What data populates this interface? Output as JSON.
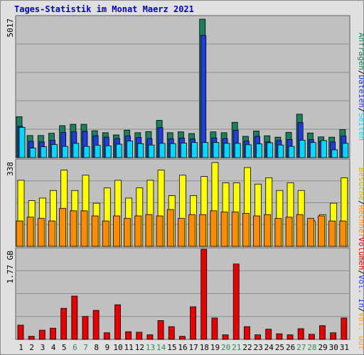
{
  "title": "Tages-Statistik im Monat Maerz 2021",
  "colors": {
    "anfragen": "#1a8060",
    "dateien": "#1e3ce0",
    "seiten": "#00d8ff",
    "besuche": "#ffff00",
    "rechner": "#ff8c00",
    "volumen": "#e80000",
    "panel_bg": "#c0c0c0",
    "grid": "#8c8c8c",
    "weekend_text": "#2e8b57",
    "weekday_text": "#000000"
  },
  "chart_data": [
    {
      "type": "bar",
      "name": "hits_files_pages",
      "ymax_label": "5017",
      "ylim": [
        0,
        5017
      ],
      "x": [
        "1",
        "2",
        "3",
        "4",
        "5",
        "6",
        "7",
        "8",
        "9",
        "10",
        "11",
        "12",
        "13",
        "14",
        "15",
        "16",
        "17",
        "18",
        "19",
        "20",
        "21",
        "22",
        "23",
        "24",
        "25",
        "26",
        "27",
        "28",
        "29",
        "30",
        "31"
      ],
      "weekend_days": [
        6,
        7,
        13,
        14,
        20,
        21,
        27,
        28
      ],
      "right_label": [
        {
          "text": "Anfragen",
          "color": "#1a8060"
        },
        {
          "text": "/",
          "color": "#000000"
        },
        {
          "text": "Dateien",
          "color": "#1e3ce0"
        },
        {
          "text": "/",
          "color": "#000000"
        },
        {
          "text": "Seiten",
          "color": "#00d8ff"
        }
      ],
      "series": [
        {
          "name": "Anfragen",
          "color": "#1a8060",
          "values": [
            1460,
            790,
            790,
            870,
            1140,
            1190,
            1190,
            960,
            890,
            810,
            980,
            890,
            930,
            1330,
            890,
            920,
            860,
            4940,
            920,
            890,
            1260,
            760,
            950,
            780,
            730,
            900,
            1550,
            880,
            740,
            730,
            1000
          ]
        },
        {
          "name": "Dateien",
          "color": "#1e3ce0",
          "values": [
            1120,
            580,
            560,
            620,
            900,
            920,
            940,
            780,
            730,
            680,
            770,
            720,
            680,
            1070,
            670,
            700,
            660,
            4360,
            700,
            680,
            980,
            590,
            760,
            560,
            610,
            650,
            1250,
            640,
            590,
            560,
            770
          ]
        },
        {
          "name": "Seiten",
          "color": "#00d8ff",
          "values": [
            1080,
            340,
            390,
            470,
            400,
            510,
            400,
            440,
            420,
            480,
            590,
            500,
            450,
            510,
            500,
            520,
            540,
            540,
            540,
            510,
            510,
            460,
            490,
            530,
            450,
            400,
            620,
            540,
            610,
            280,
            510
          ]
        }
      ]
    },
    {
      "type": "bar",
      "name": "visits_hosts",
      "ymax_label": "338",
      "ylim": [
        0,
        338
      ],
      "x": [
        "1",
        "2",
        "3",
        "4",
        "5",
        "6",
        "7",
        "8",
        "9",
        "10",
        "11",
        "12",
        "13",
        "14",
        "15",
        "16",
        "17",
        "18",
        "19",
        "20",
        "21",
        "22",
        "23",
        "24",
        "25",
        "26",
        "27",
        "28",
        "29",
        "30",
        "31"
      ],
      "right_label": [
        {
          "text": "Besuche",
          "color": "#d4b000"
        },
        {
          "text": "/",
          "color": "#000000"
        },
        {
          "text": "Rechner",
          "color": "#ff8c00"
        }
      ],
      "series": [
        {
          "name": "Besuche",
          "color": "#ffff00",
          "values": [
            260,
            180,
            190,
            220,
            300,
            220,
            280,
            170,
            230,
            260,
            190,
            230,
            260,
            300,
            200,
            280,
            200,
            275,
            330,
            250,
            250,
            310,
            245,
            270,
            220,
            250,
            220,
            100,
            125,
            170,
            270
          ]
        },
        {
          "name": "Rechner",
          "color": "#ff8c00",
          "values": [
            100,
            115,
            110,
            100,
            150,
            140,
            140,
            120,
            100,
            120,
            110,
            120,
            125,
            120,
            145,
            110,
            125,
            125,
            140,
            135,
            135,
            130,
            120,
            125,
            110,
            115,
            125,
            110,
            120,
            100,
            100
          ]
        }
      ]
    },
    {
      "type": "bar",
      "name": "volume",
      "ymax_label": "1.77 GB",
      "ylim": [
        0,
        1.77
      ],
      "x": [
        "1",
        "2",
        "3",
        "4",
        "5",
        "6",
        "7",
        "8",
        "9",
        "10",
        "11",
        "12",
        "13",
        "14",
        "15",
        "16",
        "17",
        "18",
        "19",
        "20",
        "21",
        "22",
        "23",
        "24",
        "25",
        "26",
        "27",
        "28",
        "29",
        "30",
        "31"
      ],
      "right_label": [
        {
          "text": "Volumen",
          "color": "#e80000"
        },
        {
          "text": "/",
          "color": "#000000"
        },
        {
          "text": "Vol. In",
          "color": "#1e3ce0"
        },
        {
          "text": "/",
          "color": "#000000"
        },
        {
          "text": "Vol. Out",
          "color": "#ffa500"
        }
      ],
      "series": [
        {
          "name": "Volumen",
          "color": "#e80000",
          "values": [
            0.28,
            0.06,
            0.18,
            0.22,
            0.61,
            0.85,
            0.45,
            0.57,
            0.13,
            0.68,
            0.15,
            0.14,
            0.09,
            0.37,
            0.25,
            0.06,
            0.64,
            1.77,
            0.42,
            0.09,
            1.48,
            0.25,
            0.09,
            0.2,
            0.11,
            0.09,
            0.21,
            0.1,
            0.27,
            0.13,
            0.42
          ]
        }
      ]
    }
  ]
}
